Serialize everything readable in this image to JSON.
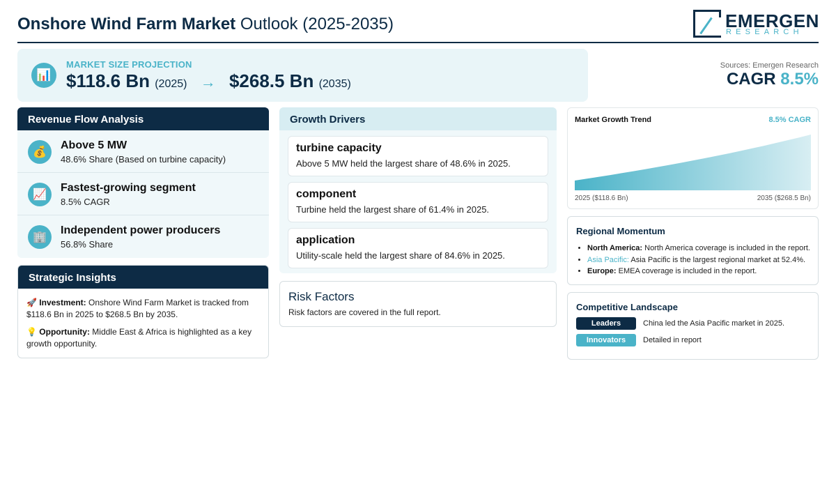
{
  "header": {
    "title_bold": "Onshore Wind Farm Market",
    "title_rest": "Outlook (2025-2035)",
    "logo_name": "EMERGEN",
    "logo_sub": "RESEARCH"
  },
  "projection": {
    "icon": "bar-chart-icon",
    "label": "MARKET SIZE PROJECTION",
    "start_value": "$118.6 Bn",
    "start_year": "(2025)",
    "arrow": "→",
    "end_value": "$268.5 Bn",
    "end_year": "(2035)"
  },
  "cagr": {
    "source": "Sources: Emergen Research",
    "label": "CAGR",
    "value": "8.5%"
  },
  "revenue": {
    "title": "Revenue Flow Analysis",
    "items": [
      {
        "icon": "money-bag-icon",
        "title": "Above 5 MW",
        "sub": "48.6% Share (Based on turbine capacity)"
      },
      {
        "icon": "trend-up-icon",
        "title": "Fastest-growing segment",
        "sub": "8.5% CAGR"
      },
      {
        "icon": "building-icon",
        "title": "Independent power producers",
        "sub": "56.8% Share"
      }
    ]
  },
  "strategic": {
    "title": "Strategic Insights",
    "investment_label": "Investment:",
    "investment_text": "Onshore Wind Farm Market is tracked from $118.6 Bn in 2025 to $268.5 Bn by 2035.",
    "opportunity_label": "Opportunity:",
    "opportunity_text": "Middle East & Africa is highlighted as a key growth opportunity."
  },
  "drivers": {
    "title": "Growth Drivers",
    "items": [
      {
        "title": "turbine capacity",
        "desc": "Above 5 MW held the largest share of 48.6% in 2025."
      },
      {
        "title": "component",
        "desc": "Turbine held the largest share of 61.4% in 2025."
      },
      {
        "title": "application",
        "desc": "Utility-scale held the largest share of 84.6% in 2025."
      }
    ]
  },
  "risk": {
    "title": "Risk Factors",
    "desc": "Risk factors are covered in the full report."
  },
  "trend": {
    "title": "Market Growth Trend",
    "cagr_label": "8.5% CAGR",
    "start_label": "2025 ($118.6 Bn)",
    "end_label": "2035 ($268.5 Bn)"
  },
  "chart_data": {
    "type": "area",
    "x": [
      2025,
      2035
    ],
    "values": [
      118.6,
      268.5
    ],
    "title": "Market Growth Trend",
    "xlabel": "",
    "ylabel": "",
    "grid": false
  },
  "regional": {
    "title": "Regional Momentum",
    "items": [
      {
        "region": "North America:",
        "text": "North America coverage is included in the report.",
        "highlight": false
      },
      {
        "region": "Asia Pacific:",
        "text": "Asia Pacific is the largest regional market at 52.4%.",
        "highlight": true
      },
      {
        "region": "Europe:",
        "text": "EMEA coverage is included in the report.",
        "highlight": false
      }
    ]
  },
  "competitive": {
    "title": "Competitive Landscape",
    "leaders_label": "Leaders",
    "leaders_text": "China led the Asia Pacific market in 2025.",
    "innovators_label": "Innovators",
    "innovators_text": "Detailed in report"
  },
  "colors": {
    "navy": "#0d2b45",
    "teal": "#4ab3c8",
    "light_bg": "#f0f8fa"
  }
}
